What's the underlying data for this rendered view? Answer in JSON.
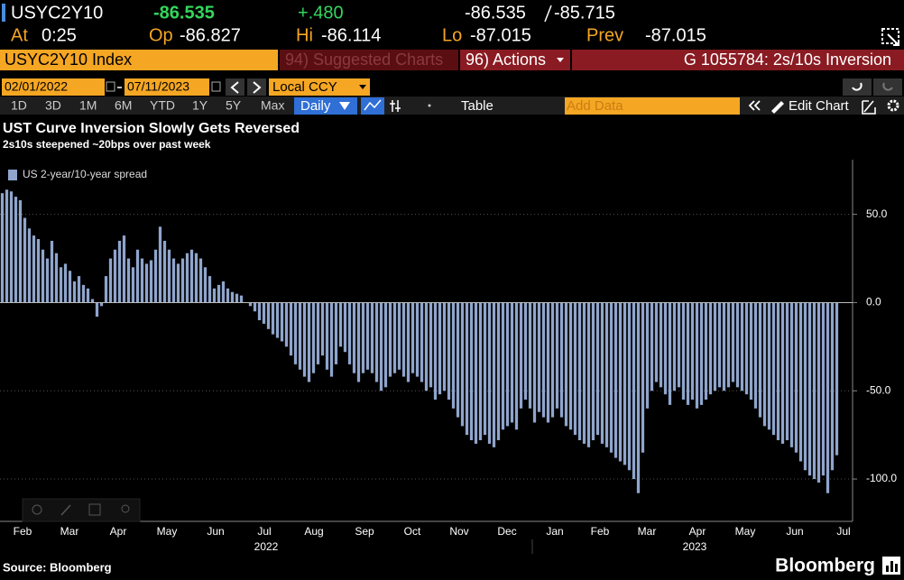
{
  "quote": {
    "ticker": "USYC2Y10",
    "last": "-86.535",
    "change": "+.480",
    "bid": "-86.535",
    "ask": "-85.715"
  },
  "stats": {
    "at_label": "At",
    "at": "0:25",
    "op_label": "Op",
    "op": "-86.827",
    "hi_label": "Hi",
    "hi": "-86.114",
    "lo_label": "Lo",
    "lo": "-87.015",
    "prev_label": "Prev",
    "prev": "-87.015"
  },
  "toolbar": {
    "security": "USYC2Y10 Index",
    "suggested": "94) Suggested Charts",
    "actions": "96) Actions",
    "chart_id": "G 1055784: 2s/10s Inversion",
    "start_date": "02/01/2022",
    "end_date": "07/11/2023",
    "currency": "Local CCY",
    "periods": [
      "1D",
      "3D",
      "1M",
      "6M",
      "YTD",
      "1Y",
      "5Y",
      "Max"
    ],
    "frequency": "Daily",
    "table": "Table",
    "add_data": "Add Data",
    "edit_chart": "Edit Chart"
  },
  "chart_data": {
    "type": "bar",
    "title": "UST Curve Inversion Slowly Gets Reversed",
    "subtitle": "2s10s steepened ~20bps over past week",
    "series": [
      {
        "name": "US 2-year/10-year spread",
        "color": "#8fa5cc",
        "values": [
          62,
          64,
          63,
          60,
          58,
          48,
          42,
          38,
          36,
          30,
          25,
          35,
          28,
          20,
          22,
          18,
          12,
          15,
          10,
          8,
          2,
          -8,
          -2,
          15,
          25,
          30,
          35,
          38,
          25,
          20,
          30,
          25,
          22,
          24,
          30,
          43,
          35,
          30,
          25,
          22,
          25,
          28,
          30,
          28,
          25,
          20,
          15,
          8,
          10,
          12,
          8,
          6,
          5,
          4,
          0,
          -2,
          -5,
          -10,
          -12,
          -15,
          -18,
          -20,
          -22,
          -25,
          -30,
          -35,
          -38,
          -42,
          -45,
          -40,
          -35,
          -30,
          -38,
          -42,
          -35,
          -25,
          -28,
          -35,
          -40,
          -45,
          -40,
          -38,
          -40,
          -45,
          -50,
          -48,
          -42,
          -40,
          -38,
          -42,
          -45,
          -40,
          -42,
          -45,
          -50,
          -48,
          -55,
          -52,
          -50,
          -55,
          -60,
          -65,
          -70,
          -75,
          -78,
          -80,
          -78,
          -75,
          -80,
          -82,
          -78,
          -72,
          -70,
          -68,
          -72,
          -60,
          -55,
          -60,
          -68,
          -62,
          -65,
          -68,
          -65,
          -60,
          -65,
          -70,
          -72,
          -75,
          -78,
          -80,
          -82,
          -78,
          -75,
          -80,
          -82,
          -85,
          -88,
          -90,
          -92,
          -95,
          -100,
          -108,
          -85,
          -60,
          -50,
          -45,
          -48,
          -52,
          -58,
          -50,
          -48,
          -55,
          -58,
          -55,
          -60,
          -58,
          -55,
          -52,
          -50,
          -48,
          -50,
          -48,
          -45,
          -48,
          -50,
          -52,
          -55,
          -60,
          -65,
          -70,
          -72,
          -75,
          -78,
          -80,
          -78,
          -82,
          -85,
          -90,
          -95,
          -98,
          -100,
          -102,
          -98,
          -108,
          -95,
          -86.5
        ]
      }
    ],
    "xlim": [
      0,
      189
    ],
    "xticks": [
      {
        "value": 5,
        "label": "Feb"
      },
      {
        "value": 15.4,
        "label": "Mar"
      },
      {
        "value": 26.2,
        "label": "Apr"
      },
      {
        "value": 37,
        "label": "May"
      },
      {
        "value": 47.8,
        "label": "Jun"
      },
      {
        "value": 58.6,
        "label": "Jul"
      },
      {
        "value": 69.6,
        "label": "Aug"
      },
      {
        "value": 80.8,
        "label": "Sep"
      },
      {
        "value": 91.4,
        "label": "Oct"
      },
      {
        "value": 101.8,
        "label": "Nov"
      },
      {
        "value": 112.4,
        "label": "Dec"
      },
      {
        "value": 123,
        "label": "Jan"
      },
      {
        "value": 133,
        "label": "Feb"
      },
      {
        "value": 143.4,
        "label": "Mar"
      },
      {
        "value": 154.6,
        "label": "Apr"
      },
      {
        "value": 165.2,
        "label": "May"
      },
      {
        "value": 176.2,
        "label": "Jun"
      },
      {
        "value": 187,
        "label": "Jul"
      }
    ],
    "x_group_labels": [
      "2022",
      "2023"
    ],
    "ylim": [
      -124,
      81
    ],
    "yticks": [
      {
        "value": 50,
        "label": "50.0"
      },
      {
        "value": 0,
        "label": "0.0"
      },
      {
        "value": -50,
        "label": "-50.0"
      },
      {
        "value": -100,
        "label": "-100.0"
      }
    ],
    "grid": true,
    "legend": "upper left"
  },
  "footer": {
    "source": "Source: Bloomberg",
    "brand": "Bloomberg"
  }
}
